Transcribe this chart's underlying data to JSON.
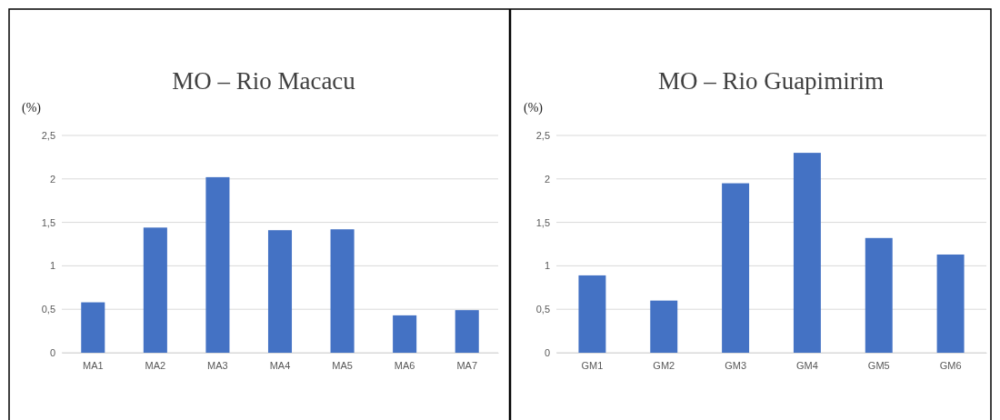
{
  "chart_data": [
    {
      "type": "bar",
      "title": "MO – Rio Macacu",
      "ylabel": "(%)",
      "categories": [
        "MA1",
        "MA2",
        "MA3",
        "MA4",
        "MA5",
        "MA6",
        "MA7"
      ],
      "values": [
        0.58,
        1.44,
        2.02,
        1.41,
        1.42,
        0.43,
        0.49
      ],
      "color": "#4472c4",
      "ylim": [
        0,
        2.5
      ],
      "yticks": [
        0,
        {
          "value": 0.5,
          "label": "0,5"
        },
        1,
        {
          "value": 1.5,
          "label": "1,5"
        },
        2,
        {
          "value": 2.5,
          "label": "2,5"
        }
      ],
      "grid": "y"
    },
    {
      "type": "bar",
      "title": "MO – Rio Guapimirim",
      "ylabel": "(%)",
      "categories": [
        "GM1",
        "GM2",
        "GM3",
        "GM4",
        "GM5",
        "GM6"
      ],
      "values": [
        0.89,
        0.6,
        1.95,
        2.3,
        1.32,
        1.13
      ],
      "color": "#4472c4",
      "ylim": [
        0,
        2.5
      ],
      "yticks": [
        0,
        {
          "value": 0.5,
          "label": "0,5"
        },
        1,
        {
          "value": 1.5,
          "label": "1,5"
        },
        2,
        {
          "value": 2.5,
          "label": "2,5"
        }
      ],
      "grid": "y"
    }
  ]
}
